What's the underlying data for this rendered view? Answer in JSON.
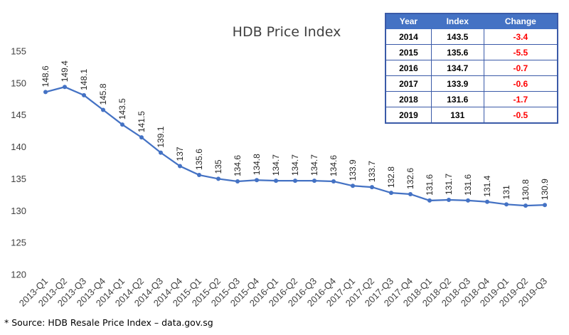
{
  "chart_data": {
    "type": "line",
    "title": "HDB Price Index",
    "xlabel": "",
    "ylabel": "",
    "ylim": [
      120,
      155
    ],
    "yticks": [
      120,
      125,
      130,
      135,
      140,
      145,
      150,
      155
    ],
    "grid": false,
    "categories": [
      "2013-Q1",
      "2013-Q2",
      "2013-Q3",
      "2013-Q4",
      "2014-Q1",
      "2014-Q2",
      "2014-Q3",
      "2014-Q4",
      "2015-Q1",
      "2015-Q2",
      "2015-Q3",
      "2015-Q4",
      "2016-Q1",
      "2016-Q2",
      "2016-Q3",
      "2016-Q4",
      "2017-Q1",
      "2017-Q2",
      "2017-Q3",
      "2017-Q4",
      "2018-Q1",
      "2018-Q2",
      "2018-Q3",
      "2018-Q4",
      "2019-Q1",
      "2019-Q2",
      "2019-Q3"
    ],
    "series": [
      {
        "values": [
          148.6,
          149.4,
          148.1,
          145.8,
          143.5,
          141.5,
          139.1,
          137,
          135.6,
          135,
          134.6,
          134.8,
          134.7,
          134.7,
          134.7,
          134.6,
          133.9,
          133.7,
          132.8,
          132.6,
          131.6,
          131.7,
          131.6,
          131.4,
          131,
          130.8,
          130.9
        ],
        "labels": [
          "148.6",
          "149.4",
          "148.1",
          "145.8",
          "143.5",
          "141.5",
          "139.1",
          "137",
          "135.6",
          "135",
          "134.6",
          "134.8",
          "134.7",
          "134.7",
          "134.7",
          "134.6",
          "133.9",
          "133.7",
          "132.8",
          "132.6",
          "131.6",
          "131.7",
          "131.6",
          "131.4",
          "131",
          "130.8",
          "130.9"
        ]
      }
    ],
    "colors": {
      "line": "#4472c4",
      "axis_text": "#404040"
    }
  },
  "table": {
    "headers": [
      "Year",
      "Index",
      "Change"
    ],
    "rows": [
      [
        "2014",
        "143.5",
        "-3.4"
      ],
      [
        "2015",
        "135.6",
        "-5.5"
      ],
      [
        "2016",
        "134.7",
        "-0.7"
      ],
      [
        "2017",
        "133.9",
        "-0.6"
      ],
      [
        "2018",
        "131.6",
        "-1.7"
      ],
      [
        "2019",
        "131",
        "-0.5"
      ]
    ],
    "colors": {
      "header_bg": "#4472c4",
      "change_text": "#ff0000"
    }
  },
  "source_note": "* Source: HDB Resale Price Index – data.gov.sg"
}
